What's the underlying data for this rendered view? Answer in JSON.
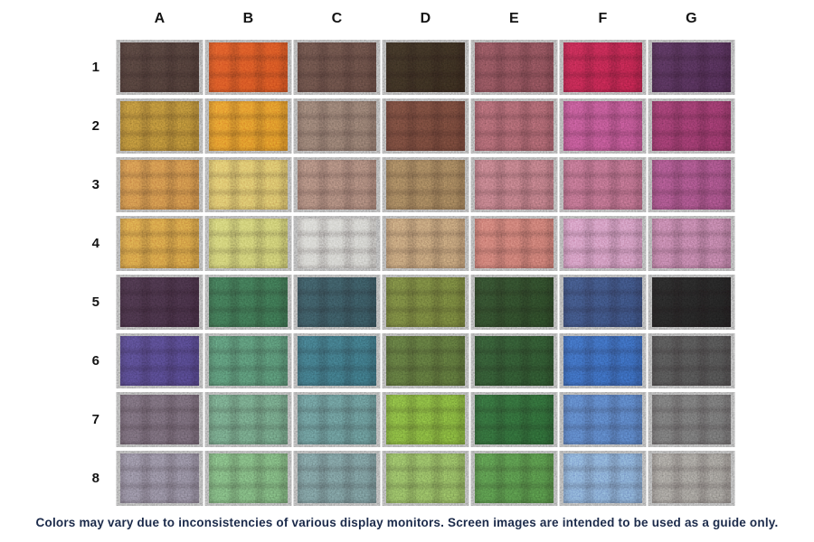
{
  "chart_data": {
    "type": "table",
    "title": "Color swatch grid",
    "columns": [
      "A",
      "B",
      "C",
      "D",
      "E",
      "F",
      "G"
    ],
    "rows": [
      "1",
      "2",
      "3",
      "4",
      "5",
      "6",
      "7",
      "8"
    ],
    "values": [
      [
        "#54403a",
        "#df5c23",
        "#6e5148",
        "#3c2f20",
        "#96545e",
        "#c62553",
        "#57305c"
      ],
      [
        "#bf9638",
        "#e8a22b",
        "#9c8476",
        "#7c4a3b",
        "#b26a75",
        "#c45a9a",
        "#a23a72"
      ],
      [
        "#d79c4e",
        "#e2cb73",
        "#b29082",
        "#a98a5f",
        "#c4848e",
        "#c27694",
        "#ad5690"
      ],
      [
        "#dcaa49",
        "#d5d57d",
        "#dbdbd7",
        "#c7a77f",
        "#d2857b",
        "#d8a3c7",
        "#c68bb0"
      ],
      [
        "#493149",
        "#3e7b55",
        "#3a5c66",
        "#7c8b3e",
        "#2e4d29",
        "#3d5589",
        "#242424"
      ],
      [
        "#584a94",
        "#5d9c7c",
        "#3f7d8d",
        "#617b3c",
        "#2f5a30",
        "#3b70c2",
        "#565656"
      ],
      [
        "#7d6f7e",
        "#79ab8e",
        "#6f9f9f",
        "#8cba3f",
        "#2f7038",
        "#5e8aca",
        "#7d7d7d"
      ],
      [
        "#9b95a6",
        "#85bb85",
        "#82a2a4",
        "#9abf66",
        "#5a9b4b",
        "#8fb3da",
        "#aaa7a2"
      ]
    ],
    "layout": {
      "column_headers_position": "top",
      "row_labels_position": "left",
      "grid_on": false
    }
  },
  "caption": {
    "text": "Colors may vary due to inconsistencies of various display monitors. Screen images are intended to be used as a guide only.",
    "color": "#1b2a4a"
  },
  "labels": {
    "header_color": "#141414",
    "row_label_color": "#141414"
  }
}
